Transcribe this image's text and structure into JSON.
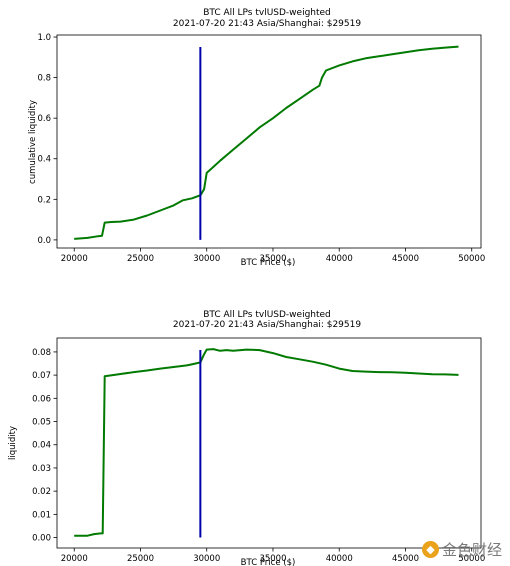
{
  "watermark": {
    "text": "金色财经"
  },
  "chart_data": [
    {
      "type": "line",
      "title": "BTC All LPs tvlUSD-weighted",
      "subtitle": "2021-07-20 21:43 Asia/Shanghai: $29519",
      "xlabel": "BTC Price ($)",
      "ylabel": "cumulative liquidity",
      "xlim": [
        18700,
        50700
      ],
      "ylim": [
        -0.04,
        1.01
      ],
      "xticks": [
        20000,
        25000,
        30000,
        35000,
        40000,
        45000,
        50000
      ],
      "xtick_labels": [
        "20000",
        "25000",
        "30000",
        "35000",
        "40000",
        "45000",
        "50000"
      ],
      "yticks": [
        0.0,
        0.2,
        0.4,
        0.6,
        0.8,
        1.0
      ],
      "ytick_labels": [
        "0.0",
        "0.2",
        "0.4",
        "0.6",
        "0.8",
        "1.0"
      ],
      "grid": false,
      "vline": {
        "x": 29519,
        "color": "#0000aa"
      },
      "series": [
        {
          "color": "#007a00",
          "x": [
            20000,
            21000,
            21800,
            22100,
            22300,
            22800,
            23500,
            24500,
            25500,
            26500,
            27500,
            28200,
            28900,
            29300,
            29519,
            29800,
            30000,
            30500,
            31000,
            32000,
            33000,
            34000,
            35000,
            36000,
            37000,
            38000,
            38500,
            38700,
            39000,
            40000,
            41000,
            42000,
            43000,
            44000,
            45000,
            46000,
            47000,
            48000,
            49000
          ],
          "y": [
            0.005,
            0.01,
            0.018,
            0.02,
            0.085,
            0.088,
            0.09,
            0.1,
            0.12,
            0.145,
            0.17,
            0.195,
            0.205,
            0.215,
            0.22,
            0.25,
            0.33,
            0.36,
            0.39,
            0.445,
            0.5,
            0.555,
            0.6,
            0.65,
            0.695,
            0.74,
            0.76,
            0.8,
            0.835,
            0.86,
            0.88,
            0.895,
            0.905,
            0.915,
            0.925,
            0.935,
            0.942,
            0.948,
            0.953
          ]
        }
      ]
    },
    {
      "type": "line",
      "title": "BTC All LPs tvlUSD-weighted",
      "subtitle": "2021-07-20 21:43 Asia/Shanghai: $29519",
      "xlabel": "BTC Price ($)",
      "ylabel": "liquidity",
      "xlim": [
        18700,
        50700
      ],
      "ylim": [
        -0.0045,
        0.086
      ],
      "xticks": [
        20000,
        25000,
        30000,
        35000,
        40000,
        45000,
        50000
      ],
      "xtick_labels": [
        "20000",
        "25000",
        "30000",
        "35000",
        "40000",
        "45000",
        "50000"
      ],
      "yticks": [
        0.0,
        0.01,
        0.02,
        0.03,
        0.04,
        0.05,
        0.06,
        0.07,
        0.08
      ],
      "ytick_labels": [
        "0.00",
        "0.01",
        "0.02",
        "0.03",
        "0.04",
        "0.05",
        "0.06",
        "0.07",
        "0.08"
      ],
      "grid": false,
      "vline": {
        "x": 29519,
        "color": "#0000aa"
      },
      "series": [
        {
          "color": "#007a00",
          "x": [
            20000,
            21000,
            21500,
            22000,
            22150,
            22300,
            23500,
            24500,
            25500,
            26500,
            27500,
            28500,
            29000,
            29519,
            29800,
            30000,
            30500,
            31000,
            31500,
            32000,
            33000,
            34000,
            35000,
            36000,
            37000,
            38000,
            39000,
            40000,
            41000,
            42000,
            43000,
            44000,
            45000,
            46000,
            47000,
            48000,
            49000
          ],
          "y": [
            0.0008,
            0.0008,
            0.0015,
            0.0018,
            0.0018,
            0.0695,
            0.0705,
            0.0713,
            0.072,
            0.0728,
            0.0735,
            0.0742,
            0.0748,
            0.0755,
            0.079,
            0.081,
            0.0812,
            0.0805,
            0.0808,
            0.0805,
            0.081,
            0.0808,
            0.0795,
            0.0778,
            0.0768,
            0.0758,
            0.0745,
            0.0728,
            0.0718,
            0.0715,
            0.0713,
            0.0712,
            0.071,
            0.0707,
            0.0704,
            0.0703,
            0.0701
          ]
        }
      ]
    }
  ]
}
